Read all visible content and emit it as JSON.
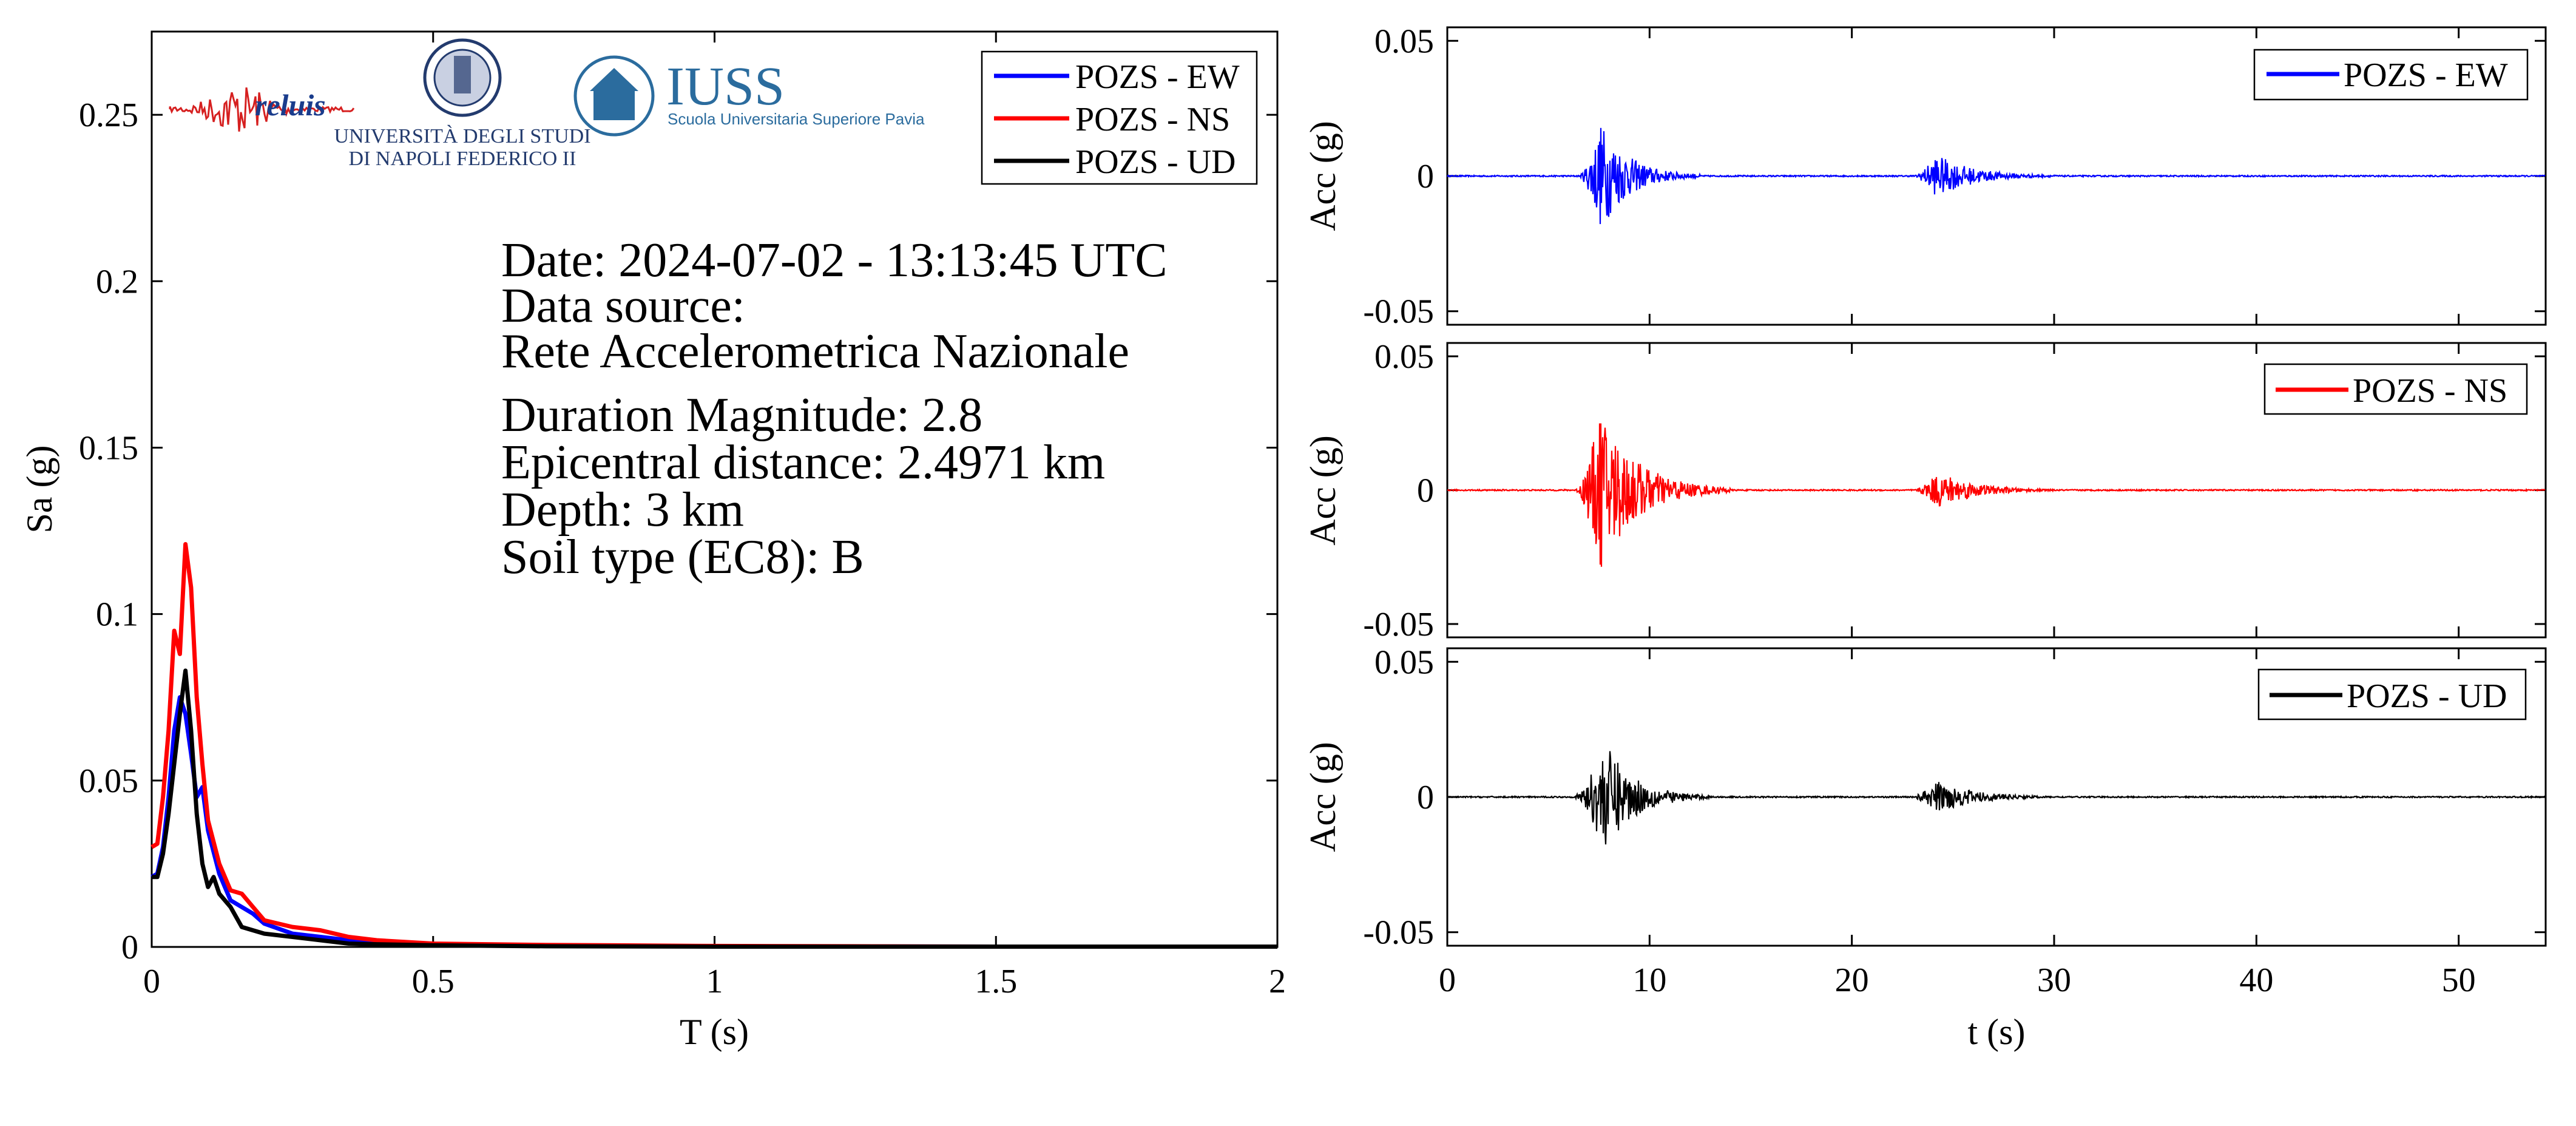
{
  "info": {
    "lines": [
      "Date: 2024-07-02 - 13:13:45 UTC",
      "Data source:",
      "Rete Accelerometrica Nazionale",
      "Duration Magnitude: 2.8",
      "Epicentral distance: 2.4971 km",
      "Depth: 3 km",
      "Soil type (EC8): B"
    ]
  },
  "logos": {
    "reluis": "reluis",
    "unina_line1": "UNIVERSITÀ DEGLI STUDI",
    "unina_line2": "DI NAPOLI FEDERICO II",
    "iuss": "IUSS",
    "iuss_sub": "Scuola Universitaria Superiore Pavia"
  },
  "colors": {
    "EW": "#0000ff",
    "NS": "#ff0000",
    "UD": "#000000"
  },
  "chart_data": [
    {
      "type": "line",
      "xlabel": "T (s)",
      "ylabel": "Sa (g)",
      "xlim": [
        0,
        2
      ],
      "ylim": [
        0,
        0.275
      ],
      "xticks": [
        0,
        0.5,
        1,
        1.5,
        2
      ],
      "xtick_labels": [
        "0",
        "0.5",
        "1",
        "1.5",
        "2"
      ],
      "yticks": [
        0,
        0.05,
        0.1,
        0.15,
        0.2,
        0.25
      ],
      "ytick_labels": [
        "0",
        "0.05",
        "0.1",
        "0.15",
        "0.2",
        "0.25"
      ],
      "legend": "top-right",
      "series": [
        {
          "name": "POZS - EW",
          "color": "#0000ff",
          "x": [
            0,
            0.01,
            0.02,
            0.03,
            0.04,
            0.05,
            0.06,
            0.07,
            0.08,
            0.09,
            0.1,
            0.12,
            0.14,
            0.16,
            0.18,
            0.2,
            0.25,
            0.3,
            0.35,
            0.4,
            0.5,
            0.7,
            1.0,
            1.5,
            2.0
          ],
          "y": [
            0.021,
            0.022,
            0.03,
            0.045,
            0.065,
            0.075,
            0.07,
            0.058,
            0.045,
            0.048,
            0.035,
            0.022,
            0.014,
            0.012,
            0.01,
            0.007,
            0.004,
            0.003,
            0.002,
            0.0015,
            0.0008,
            0.0004,
            0.0002,
            0.0001,
            0.0001
          ]
        },
        {
          "name": "POZS - NS",
          "color": "#ff0000",
          "x": [
            0,
            0.01,
            0.02,
            0.03,
            0.04,
            0.05,
            0.06,
            0.07,
            0.08,
            0.09,
            0.1,
            0.12,
            0.14,
            0.16,
            0.18,
            0.2,
            0.25,
            0.3,
            0.35,
            0.4,
            0.5,
            0.7,
            1.0,
            1.5,
            2.0
          ],
          "y": [
            0.03,
            0.031,
            0.045,
            0.065,
            0.095,
            0.088,
            0.121,
            0.108,
            0.075,
            0.055,
            0.038,
            0.025,
            0.017,
            0.016,
            0.012,
            0.008,
            0.006,
            0.005,
            0.003,
            0.002,
            0.001,
            0.0006,
            0.0003,
            0.0001,
            0.0001
          ]
        },
        {
          "name": "POZS - UD",
          "color": "#000000",
          "x": [
            0,
            0.01,
            0.02,
            0.03,
            0.04,
            0.05,
            0.06,
            0.07,
            0.08,
            0.09,
            0.1,
            0.11,
            0.12,
            0.14,
            0.16,
            0.18,
            0.2,
            0.25,
            0.3,
            0.35,
            0.4,
            0.5,
            0.7,
            1.0,
            1.5,
            2.0
          ],
          "y": [
            0.021,
            0.021,
            0.028,
            0.04,
            0.055,
            0.07,
            0.083,
            0.065,
            0.04,
            0.025,
            0.018,
            0.021,
            0.016,
            0.012,
            0.006,
            0.005,
            0.004,
            0.003,
            0.002,
            0.001,
            0.0008,
            0.0005,
            0.0002,
            0.0001,
            0.0001,
            0.0001
          ]
        }
      ]
    },
    {
      "type": "line",
      "xlabel": "",
      "ylabel": "Acc (g)",
      "xlim": [
        0,
        54.3
      ],
      "ylim": [
        -0.055,
        0.055
      ],
      "yticks": [
        -0.05,
        0,
        0.05
      ],
      "ytick_labels": [
        "-0.05",
        "0",
        "0.05"
      ],
      "legend": "top-right",
      "series": [
        {
          "name": "POZS - EW",
          "color": "#0000ff",
          "bursts": [
            {
              "t0": 6.5,
              "t1": 12.5,
              "tpeak": 7.6,
              "amp": 0.02
            },
            {
              "t0": 23.0,
              "t1": 30.5,
              "tpeak": 24.2,
              "amp": 0.008
            }
          ]
        }
      ]
    },
    {
      "type": "line",
      "xlabel": "",
      "ylabel": "Acc (g)",
      "xlim": [
        0,
        54.3
      ],
      "ylim": [
        -0.055,
        0.055
      ],
      "yticks": [
        -0.05,
        0,
        0.05
      ],
      "ytick_labels": [
        "-0.05",
        "0",
        "0.05"
      ],
      "legend": "top-right",
      "series": [
        {
          "name": "POZS - NS",
          "color": "#ff0000",
          "bursts": [
            {
              "t0": 6.3,
              "t1": 14.0,
              "tpeak": 7.6,
              "amp": 0.03
            },
            {
              "t0": 23.0,
              "t1": 30.5,
              "tpeak": 24.3,
              "amp": 0.007
            }
          ]
        }
      ]
    },
    {
      "type": "line",
      "xlabel": "t (s)",
      "ylabel": "Acc (g)",
      "xlim": [
        0,
        54.3
      ],
      "ylim": [
        -0.055,
        0.055
      ],
      "xticks": [
        0,
        10,
        20,
        30,
        40,
        50
      ],
      "xtick_labels": [
        "0",
        "10",
        "20",
        "30",
        "40",
        "50"
      ],
      "yticks": [
        -0.05,
        0,
        0.05
      ],
      "ytick_labels": [
        "-0.05",
        "0",
        "0.05"
      ],
      "legend": "top-right",
      "series": [
        {
          "name": "POZS - UD",
          "color": "#000000",
          "bursts": [
            {
              "t0": 6.2,
              "t1": 13.0,
              "tpeak": 7.8,
              "amp": 0.02
            },
            {
              "t0": 22.8,
              "t1": 30.5,
              "tpeak": 24.3,
              "amp": 0.006
            }
          ]
        }
      ]
    }
  ]
}
